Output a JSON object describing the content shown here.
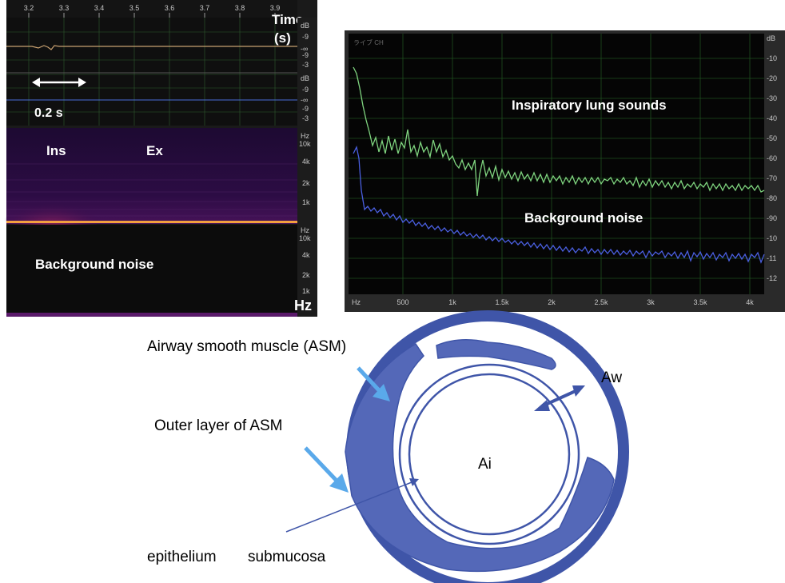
{
  "spectrogram": {
    "time_ticks": [
      "3.2",
      "3.3",
      "3.4",
      "3.5",
      "3.6",
      "3.7",
      "3.8",
      "3.9"
    ],
    "time_axis_label_line1": "Time",
    "time_axis_label_line2": "(s)",
    "scale_bar_label": "0.2 s",
    "ins_label": "Ins",
    "ex_label": "Ex",
    "background_label": "Background noise",
    "freq_axis_label": "Hz",
    "db_ticks": [
      "dB",
      "-9",
      "-∞",
      "-9",
      "-3"
    ],
    "freq_ticks": [
      "Hz",
      "10k",
      "4k",
      "2k",
      "1k"
    ]
  },
  "spectrum": {
    "header_text": "ライブ CH",
    "inspiratory_label": "Inspiratory lung sounds",
    "background_label": "Background noise",
    "x_ticks": [
      "Hz",
      "500",
      "1k",
      "1.5k",
      "2k",
      "2.5k",
      "3k",
      "3.5k",
      "4k"
    ],
    "y_ticks": [
      "dB",
      "-10",
      "-20",
      "-30",
      "-40",
      "-50",
      "-60",
      "-70",
      "-80",
      "-90",
      "-10",
      "-11",
      "-12"
    ],
    "colors": {
      "inspiratory": "#7fd47f",
      "background": "#4a5fe0"
    }
  },
  "airway": {
    "asm_label": "Airway smooth muscle (ASM)",
    "outer_layer_label": "Outer layer of ASM",
    "epithelium_label": "epithelium",
    "submucosa_label": "submucosa",
    "aw_label": "Aw",
    "ai_label": "Ai",
    "colors": {
      "wall": "#3f55a8",
      "asm": "#5468b8",
      "arrow": "#5aa9ea"
    }
  }
}
